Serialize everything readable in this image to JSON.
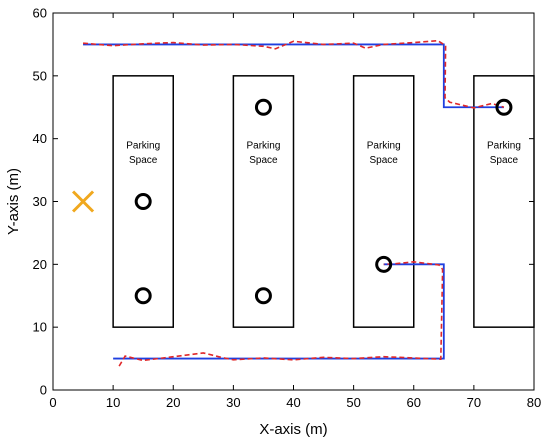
{
  "chart_data": {
    "type": "line",
    "title": "",
    "xlabel": "X-axis (m)",
    "ylabel": "Y-axis (m)",
    "xlim": [
      0,
      80
    ],
    "ylim": [
      0,
      60
    ],
    "xticks": [
      "0",
      "10",
      "20",
      "30",
      "40",
      "50",
      "60",
      "70",
      "80"
    ],
    "yticks": [
      "0",
      "10",
      "20",
      "30",
      "40",
      "50",
      "60"
    ],
    "grid": false,
    "legend": "none",
    "parking_spaces": [
      {
        "x0": 10,
        "x1": 20,
        "y0": 10,
        "y1": 50,
        "label_line1": "Parking",
        "label_line2": "Space"
      },
      {
        "x0": 30,
        "x1": 40,
        "y0": 10,
        "y1": 50,
        "label_line1": "Parking",
        "label_line2": "Space"
      },
      {
        "x0": 50,
        "x1": 60,
        "y0": 10,
        "y1": 50,
        "label_line1": "Parking",
        "label_line2": "Space"
      },
      {
        "x0": 70,
        "x1": 80,
        "y0": 10,
        "y1": 50,
        "label_line1": "Parking",
        "label_line2": "Space"
      }
    ],
    "circles": [
      {
        "x": 15,
        "y": 30
      },
      {
        "x": 15,
        "y": 15
      },
      {
        "x": 35,
        "y": 45
      },
      {
        "x": 35,
        "y": 15
      },
      {
        "x": 55,
        "y": 20
      },
      {
        "x": 75,
        "y": 45
      }
    ],
    "cross": {
      "x": 5,
      "y": 30,
      "color": "#F0A81E"
    },
    "series": [
      {
        "style": "solid",
        "color": "#1F3FE0",
        "paths": [
          [
            [
              5,
              55
            ],
            [
              65,
              55
            ],
            [
              65,
              45
            ],
            [
              75,
              45
            ]
          ],
          [
            [
              10,
              5
            ],
            [
              65,
              5
            ],
            [
              65,
              20
            ],
            [
              55,
              20
            ]
          ]
        ]
      },
      {
        "style": "dashed",
        "color": "#E0282A",
        "paths": [
          [
            [
              5,
              55.2
            ],
            [
              10,
              54.8
            ],
            [
              15,
              55.1
            ],
            [
              20,
              55.3
            ],
            [
              25,
              54.9
            ],
            [
              30,
              55.0
            ],
            [
              35,
              54.7
            ],
            [
              37,
              54.3
            ],
            [
              40,
              55.5
            ],
            [
              45,
              55.0
            ],
            [
              50,
              55.2
            ],
            [
              52,
              54.4
            ],
            [
              55,
              55.0
            ],
            [
              60,
              55.3
            ],
            [
              64,
              55.6
            ],
            [
              65.3,
              54.8
            ],
            [
              65.2,
              46.5
            ],
            [
              66,
              45.8
            ],
            [
              70,
              44.9
            ],
            [
              73,
              45.6
            ],
            [
              75,
              45.0
            ]
          ],
          [
            [
              11,
              3.8
            ],
            [
              12,
              5.4
            ],
            [
              15,
              4.7
            ],
            [
              20,
              5.3
            ],
            [
              25,
              5.9
            ],
            [
              28,
              5.2
            ],
            [
              30,
              4.8
            ],
            [
              35,
              5.1
            ],
            [
              40,
              4.8
            ],
            [
              45,
              5.2
            ],
            [
              50,
              5.0
            ],
            [
              55,
              5.3
            ],
            [
              60,
              5.1
            ],
            [
              64.5,
              4.9
            ],
            [
              64.8,
              19.2
            ],
            [
              64.2,
              19.9
            ],
            [
              60,
              20.4
            ],
            [
              57,
              20.1
            ],
            [
              55,
              20
            ]
          ]
        ]
      }
    ]
  }
}
